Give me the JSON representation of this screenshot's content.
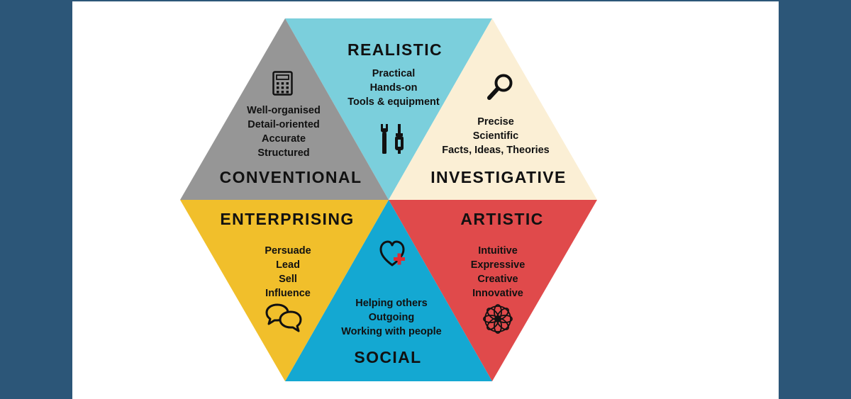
{
  "colors": {
    "background": "#2c5678",
    "panel": "#ffffff",
    "realistic": "#7bcfdc",
    "investigative": "#fbefd5",
    "artistic": "#e04a4b",
    "social": "#14a8d2",
    "enterprising": "#f1bf2b",
    "conventional": "#969696",
    "text": "#111111",
    "heart_plus": "#e02b32"
  },
  "segments": {
    "realistic": {
      "title": "REALISTIC",
      "lines": [
        "Practical",
        "Hands-on",
        "Tools & equipment"
      ],
      "icon": "wrench-screwdriver-icon"
    },
    "investigative": {
      "title": "INVESTIGATIVE",
      "lines": [
        "Precise",
        "Scientific",
        "Facts, Ideas, Theories"
      ],
      "icon": "magnifier-icon"
    },
    "artistic": {
      "title": "ARTISTIC",
      "lines": [
        "Intuitive",
        "Expressive",
        "Creative",
        "Innovative"
      ],
      "icon": "flower-mandala-icon"
    },
    "social": {
      "title": "SOCIAL",
      "lines": [
        "Helping others",
        "Outgoing",
        "Working with people"
      ],
      "icon": "heart-plus-icon"
    },
    "enterprising": {
      "title": "ENTERPRISING",
      "lines": [
        "Persuade",
        "Lead",
        "Sell",
        "Influence"
      ],
      "icon": "speech-bubbles-icon"
    },
    "conventional": {
      "title": "CONVENTIONAL",
      "lines": [
        "Well-organised",
        "Detail-oriented",
        "Accurate",
        "Structured"
      ],
      "icon": "calculator-icon"
    }
  }
}
